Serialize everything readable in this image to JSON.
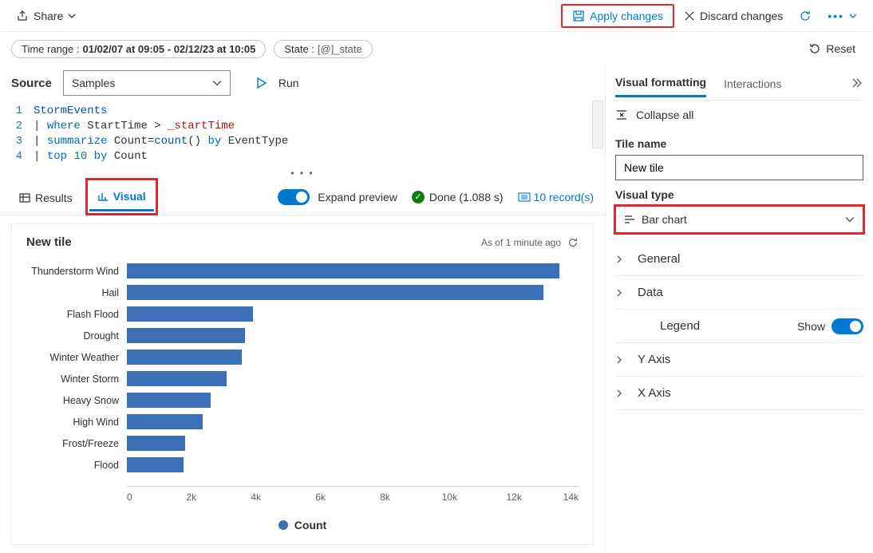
{
  "topbar": {
    "share_label": "Share",
    "apply_label": "Apply changes",
    "discard_label": "Discard changes"
  },
  "filters": {
    "time_prefix": "Time range : ",
    "time_value": "01/02/07 at 09:05 - 02/12/23 at 10:05",
    "state_prefix": "State : ",
    "state_value": "[@]_state",
    "reset_label": "Reset"
  },
  "source": {
    "label": "Source",
    "selected": "Samples",
    "run_label": "Run"
  },
  "editor": {
    "lines": [
      "1",
      "2",
      "3",
      "4"
    ],
    "code_line1_a": "StormEvents",
    "code_line2_a": "| ",
    "code_line2_b": "where",
    "code_line2_c": " StartTime > ",
    "code_line2_d": "_startTime",
    "code_line3_a": "| ",
    "code_line3_b": "summarize",
    "code_line3_c": " Count=",
    "code_line3_d": "count",
    "code_line3_e": "() ",
    "code_line3_f": "by",
    "code_line3_g": " EventType",
    "code_line4_a": "| ",
    "code_line4_b": "top",
    "code_line4_c": " ",
    "code_line4_d": "10",
    "code_line4_e": " ",
    "code_line4_f": "by",
    "code_line4_g": " Count"
  },
  "result_tabs": {
    "results_label": "Results",
    "visual_label": "Visual",
    "expand_label": "Expand preview",
    "done_label": "Done (1.088 s)",
    "records_label": "10 record(s)"
  },
  "tile": {
    "title": "New tile",
    "asof": "As of 1 minute ago",
    "legend_label": "Count"
  },
  "chart": {
    "type": "bar-horizontal",
    "bar_color": "#3b6fb6",
    "background_color": "#ffffff",
    "axis_color": "#d2d0ce",
    "label_color": "#323130",
    "label_fontsize": 12.5,
    "xlim": [
      0,
      14000
    ],
    "xtick_step": 2000,
    "ticks": [
      "0",
      "2k",
      "4k",
      "6k",
      "8k",
      "10k",
      "12k",
      "14k"
    ],
    "bars": [
      {
        "label": "Thunderstorm Wind",
        "value": 13400
      },
      {
        "label": "Hail",
        "value": 12900
      },
      {
        "label": "Flash Flood",
        "value": 3900
      },
      {
        "label": "Drought",
        "value": 3650
      },
      {
        "label": "Winter Weather",
        "value": 3550
      },
      {
        "label": "Winter Storm",
        "value": 3100
      },
      {
        "label": "Heavy Snow",
        "value": 2600
      },
      {
        "label": "High Wind",
        "value": 2350
      },
      {
        "label": "Frost/Freeze",
        "value": 1800
      },
      {
        "label": "Flood",
        "value": 1750
      }
    ]
  },
  "right": {
    "tab_visual": "Visual formatting",
    "tab_interactions": "Interactions",
    "collapse_all": "Collapse all",
    "tile_name_label": "Tile name",
    "tile_name_value": "New tile",
    "visual_type_label": "Visual type",
    "visual_type_value": "Bar chart",
    "acc_general": "General",
    "acc_data": "Data",
    "acc_legend": "Legend",
    "acc_legend_show": "Show",
    "acc_yaxis": "Y Axis",
    "acc_xaxis": "X Axis"
  }
}
